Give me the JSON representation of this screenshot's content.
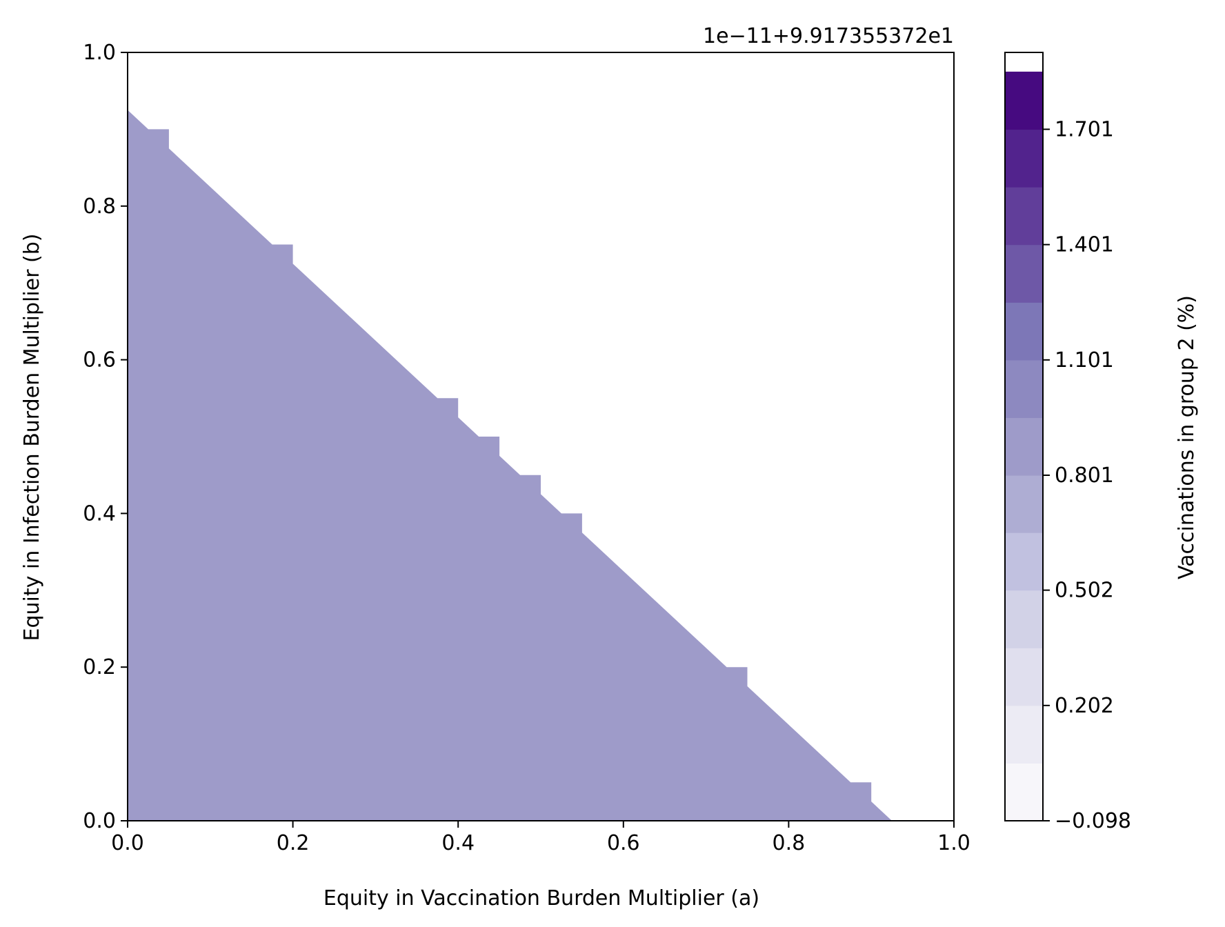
{
  "chart_data": {
    "type": "contour",
    "xlabel": "Equity in Vaccination Burden Multiplier (a)",
    "ylabel": "Equity in Infection Burden Multiplier (b)",
    "xlim": [
      0.0,
      1.0
    ],
    "ylim": [
      0.0,
      1.0
    ],
    "xticks": [
      "0.0",
      "0.2",
      "0.4",
      "0.6",
      "0.8",
      "1.0"
    ],
    "yticks": [
      "0.0",
      "0.2",
      "0.4",
      "0.6",
      "0.8",
      "1.0"
    ],
    "grid": false,
    "region": {
      "label": "filled region (a + b below boundary)",
      "fill_color": "#9e9bc9",
      "boundary": [
        [
          0.0,
          0.925
        ],
        [
          0.025,
          0.9
        ],
        [
          0.05,
          0.9
        ],
        [
          0.05,
          0.875
        ],
        [
          0.175,
          0.75
        ],
        [
          0.2,
          0.75
        ],
        [
          0.2,
          0.725
        ],
        [
          0.375,
          0.55
        ],
        [
          0.4,
          0.55
        ],
        [
          0.4,
          0.525
        ],
        [
          0.425,
          0.5
        ],
        [
          0.45,
          0.5
        ],
        [
          0.45,
          0.475
        ],
        [
          0.475,
          0.45
        ],
        [
          0.5,
          0.45
        ],
        [
          0.5,
          0.425
        ],
        [
          0.525,
          0.4
        ],
        [
          0.55,
          0.4
        ],
        [
          0.55,
          0.375
        ],
        [
          0.725,
          0.2
        ],
        [
          0.75,
          0.2
        ],
        [
          0.75,
          0.175
        ],
        [
          0.875,
          0.05
        ],
        [
          0.9,
          0.05
        ],
        [
          0.9,
          0.025
        ],
        [
          0.925,
          0.0
        ]
      ],
      "background_color": "#ffffff"
    },
    "colorbar": {
      "label": "Vaccinations in group 2 (%)",
      "offset_text": "1e−11+9.917355372e1",
      "range": [
        -0.098,
        1.901
      ],
      "levels": [
        -0.098,
        0.052,
        0.202,
        0.352,
        0.502,
        0.652,
        0.801,
        0.951,
        1.101,
        1.251,
        1.401,
        1.551,
        1.701,
        1.851,
        1.901
      ],
      "tick_values": [
        -0.098,
        0.202,
        0.502,
        0.801,
        1.101,
        1.401,
        1.701
      ],
      "tick_labels": [
        "−0.098",
        "0.202",
        "0.502",
        "0.801",
        "1.101",
        "1.401",
        "1.701"
      ],
      "colors": [
        "#f7f6fa",
        "#ecebf4",
        "#e0dfee",
        "#d2d2e7",
        "#c1c1e0",
        "#aeadd3",
        "#9e9bc9",
        "#8d89c0",
        "#7d77b7",
        "#6e58a7",
        "#613e9a",
        "#52238d",
        "#460a80"
      ]
    }
  }
}
